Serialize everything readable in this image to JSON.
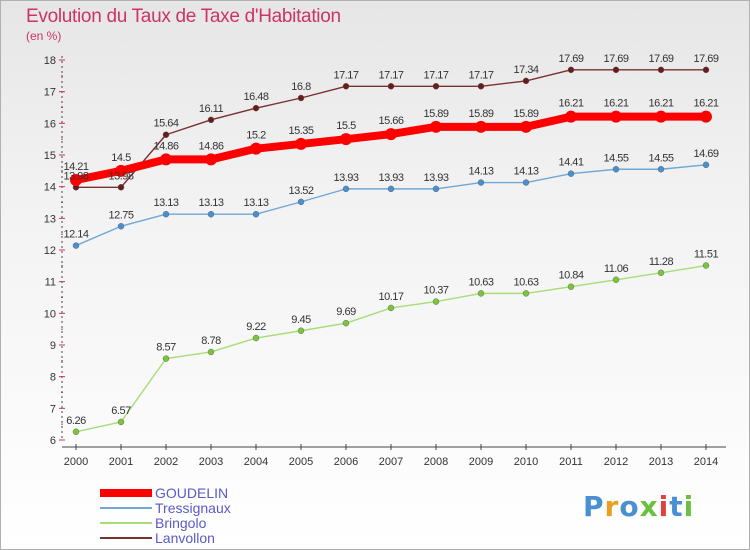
{
  "title": "Evolution du Taux de Taxe d'Habitation",
  "unit": "(en %)",
  "brand": "Proxiti",
  "colors": {
    "title": "#cc3366",
    "legend_text": "#5a5ac8"
  },
  "chart_data": {
    "type": "line",
    "x": [
      "2000",
      "2001",
      "2002",
      "2003",
      "2004",
      "2005",
      "2006",
      "2007",
      "2008",
      "2009",
      "2010",
      "2011",
      "2012",
      "2013",
      "2014"
    ],
    "ylim": [
      6,
      18
    ],
    "yticks": [
      6,
      7,
      8,
      9,
      10,
      11,
      12,
      13,
      14,
      15,
      16,
      17,
      18
    ],
    "grid": false,
    "legend_position": "bottom-left",
    "series": [
      {
        "name": "GOUDELIN",
        "color": "#ff0000",
        "marker": "#ff0000",
        "thick": true,
        "values": [
          14.21,
          14.5,
          14.86,
          14.86,
          15.2,
          15.35,
          15.5,
          15.66,
          15.89,
          15.89,
          15.89,
          16.21,
          16.21,
          16.21,
          16.21
        ],
        "labels": [
          "14.21",
          "14.5",
          "14.86",
          "14.86",
          "15.2",
          "15.35",
          "15.5",
          "15.66",
          "15.89",
          "15.89",
          "15.89",
          "16.21",
          "16.21",
          "16.21",
          "16.21"
        ]
      },
      {
        "name": "Tressignaux",
        "color": "#6fa8d6",
        "marker": "#4a90d0",
        "thick": false,
        "values": [
          12.14,
          12.75,
          13.13,
          13.13,
          13.13,
          13.52,
          13.93,
          13.93,
          13.93,
          14.13,
          14.13,
          14.41,
          14.55,
          14.55,
          14.69
        ],
        "labels": [
          "12.14",
          "12.75",
          "13.13",
          "13.13",
          "13.13",
          "13.52",
          "13.93",
          "13.93",
          "13.93",
          "14.13",
          "14.13",
          "14.41",
          "14.55",
          "14.55",
          "14.69"
        ]
      },
      {
        "name": "Bringolo",
        "color": "#a8dc78",
        "marker": "#7cc43c",
        "thick": false,
        "values": [
          6.26,
          6.57,
          8.57,
          8.78,
          9.22,
          9.45,
          9.69,
          10.17,
          10.37,
          10.63,
          10.63,
          10.84,
          11.06,
          11.28,
          11.51
        ],
        "labels": [
          "6.26",
          "6.57",
          "8.57",
          "8.78",
          "9.22",
          "9.45",
          "9.69",
          "10.17",
          "10.37",
          "10.63",
          "10.63",
          "10.84",
          "11.06",
          "11.28",
          "11.51"
        ]
      },
      {
        "name": "Lanvollon",
        "color": "#7a3030",
        "marker": "#6a1c1c",
        "thick": false,
        "values": [
          13.98,
          13.98,
          15.64,
          16.11,
          16.48,
          16.8,
          17.17,
          17.17,
          17.17,
          17.17,
          17.34,
          17.69,
          17.69,
          17.69,
          17.69
        ],
        "labels": [
          "13.98",
          "13.98",
          "15.64",
          "16.11",
          "16.48",
          "16.8",
          "17.17",
          "17.17",
          "17.17",
          "17.17",
          "17.34",
          "17.69",
          "17.69",
          "17.69",
          "17.69"
        ]
      }
    ]
  },
  "legend": [
    {
      "label": "GOUDELIN"
    },
    {
      "label": "Tressignaux"
    },
    {
      "label": "Bringolo"
    },
    {
      "label": "Lanvollon"
    }
  ]
}
